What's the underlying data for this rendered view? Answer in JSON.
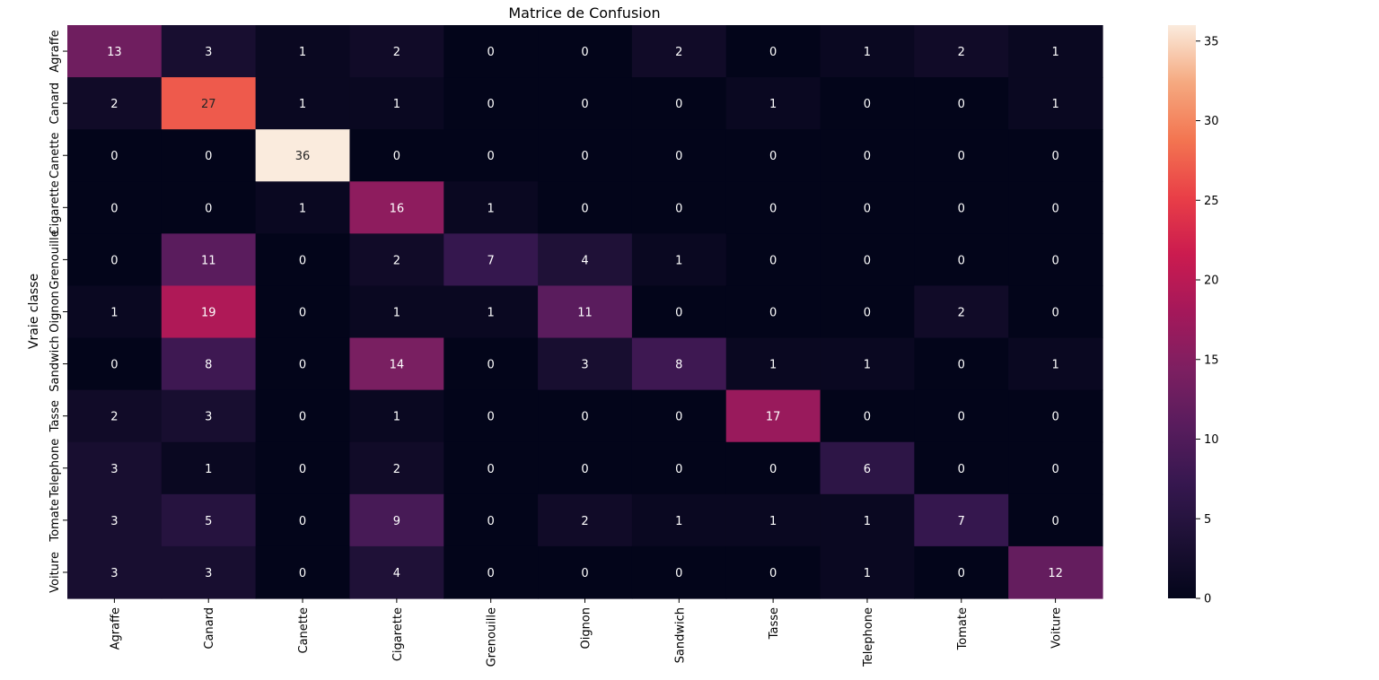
{
  "chart_data": {
    "type": "heatmap",
    "title": "Matrice de Confusion",
    "ylabel": "Vraie classe",
    "xlabel": "",
    "x_categories": [
      "Agraffe",
      "Canard",
      "Canette",
      "Cigarette",
      "Grenouille",
      "Oignon",
      "Sandwich",
      "Tasse",
      "Telephone",
      "Tomate",
      "Voiture"
    ],
    "y_categories": [
      "Agraffe",
      "Canard",
      "Canette",
      "Cigarette",
      "Grenouille",
      "Oignon",
      "Sandwich",
      "Tasse",
      "Telephone",
      "Tomate",
      "Voiture"
    ],
    "values": [
      [
        13,
        3,
        1,
        2,
        0,
        0,
        2,
        0,
        1,
        2,
        1
      ],
      [
        2,
        27,
        1,
        1,
        0,
        0,
        0,
        1,
        0,
        0,
        1
      ],
      [
        0,
        0,
        36,
        0,
        0,
        0,
        0,
        0,
        0,
        0,
        0
      ],
      [
        0,
        0,
        1,
        16,
        1,
        0,
        0,
        0,
        0,
        0,
        0
      ],
      [
        0,
        11,
        0,
        2,
        7,
        4,
        1,
        0,
        0,
        0,
        0
      ],
      [
        1,
        19,
        0,
        1,
        1,
        11,
        0,
        0,
        0,
        2,
        0
      ],
      [
        0,
        8,
        0,
        14,
        0,
        3,
        8,
        1,
        1,
        0,
        1
      ],
      [
        2,
        3,
        0,
        1,
        0,
        0,
        0,
        17,
        0,
        0,
        0
      ],
      [
        3,
        1,
        0,
        2,
        0,
        0,
        0,
        0,
        6,
        0,
        0
      ],
      [
        3,
        5,
        0,
        9,
        0,
        2,
        1,
        1,
        1,
        7,
        0
      ],
      [
        3,
        3,
        0,
        4,
        0,
        0,
        0,
        0,
        1,
        0,
        12
      ]
    ],
    "vmin": 0,
    "vmax": 36,
    "colormap": "rocket",
    "colorbar_ticks": [
      0,
      5,
      10,
      15,
      20,
      25,
      30,
      35
    ],
    "annotations": true,
    "grid": false
  }
}
